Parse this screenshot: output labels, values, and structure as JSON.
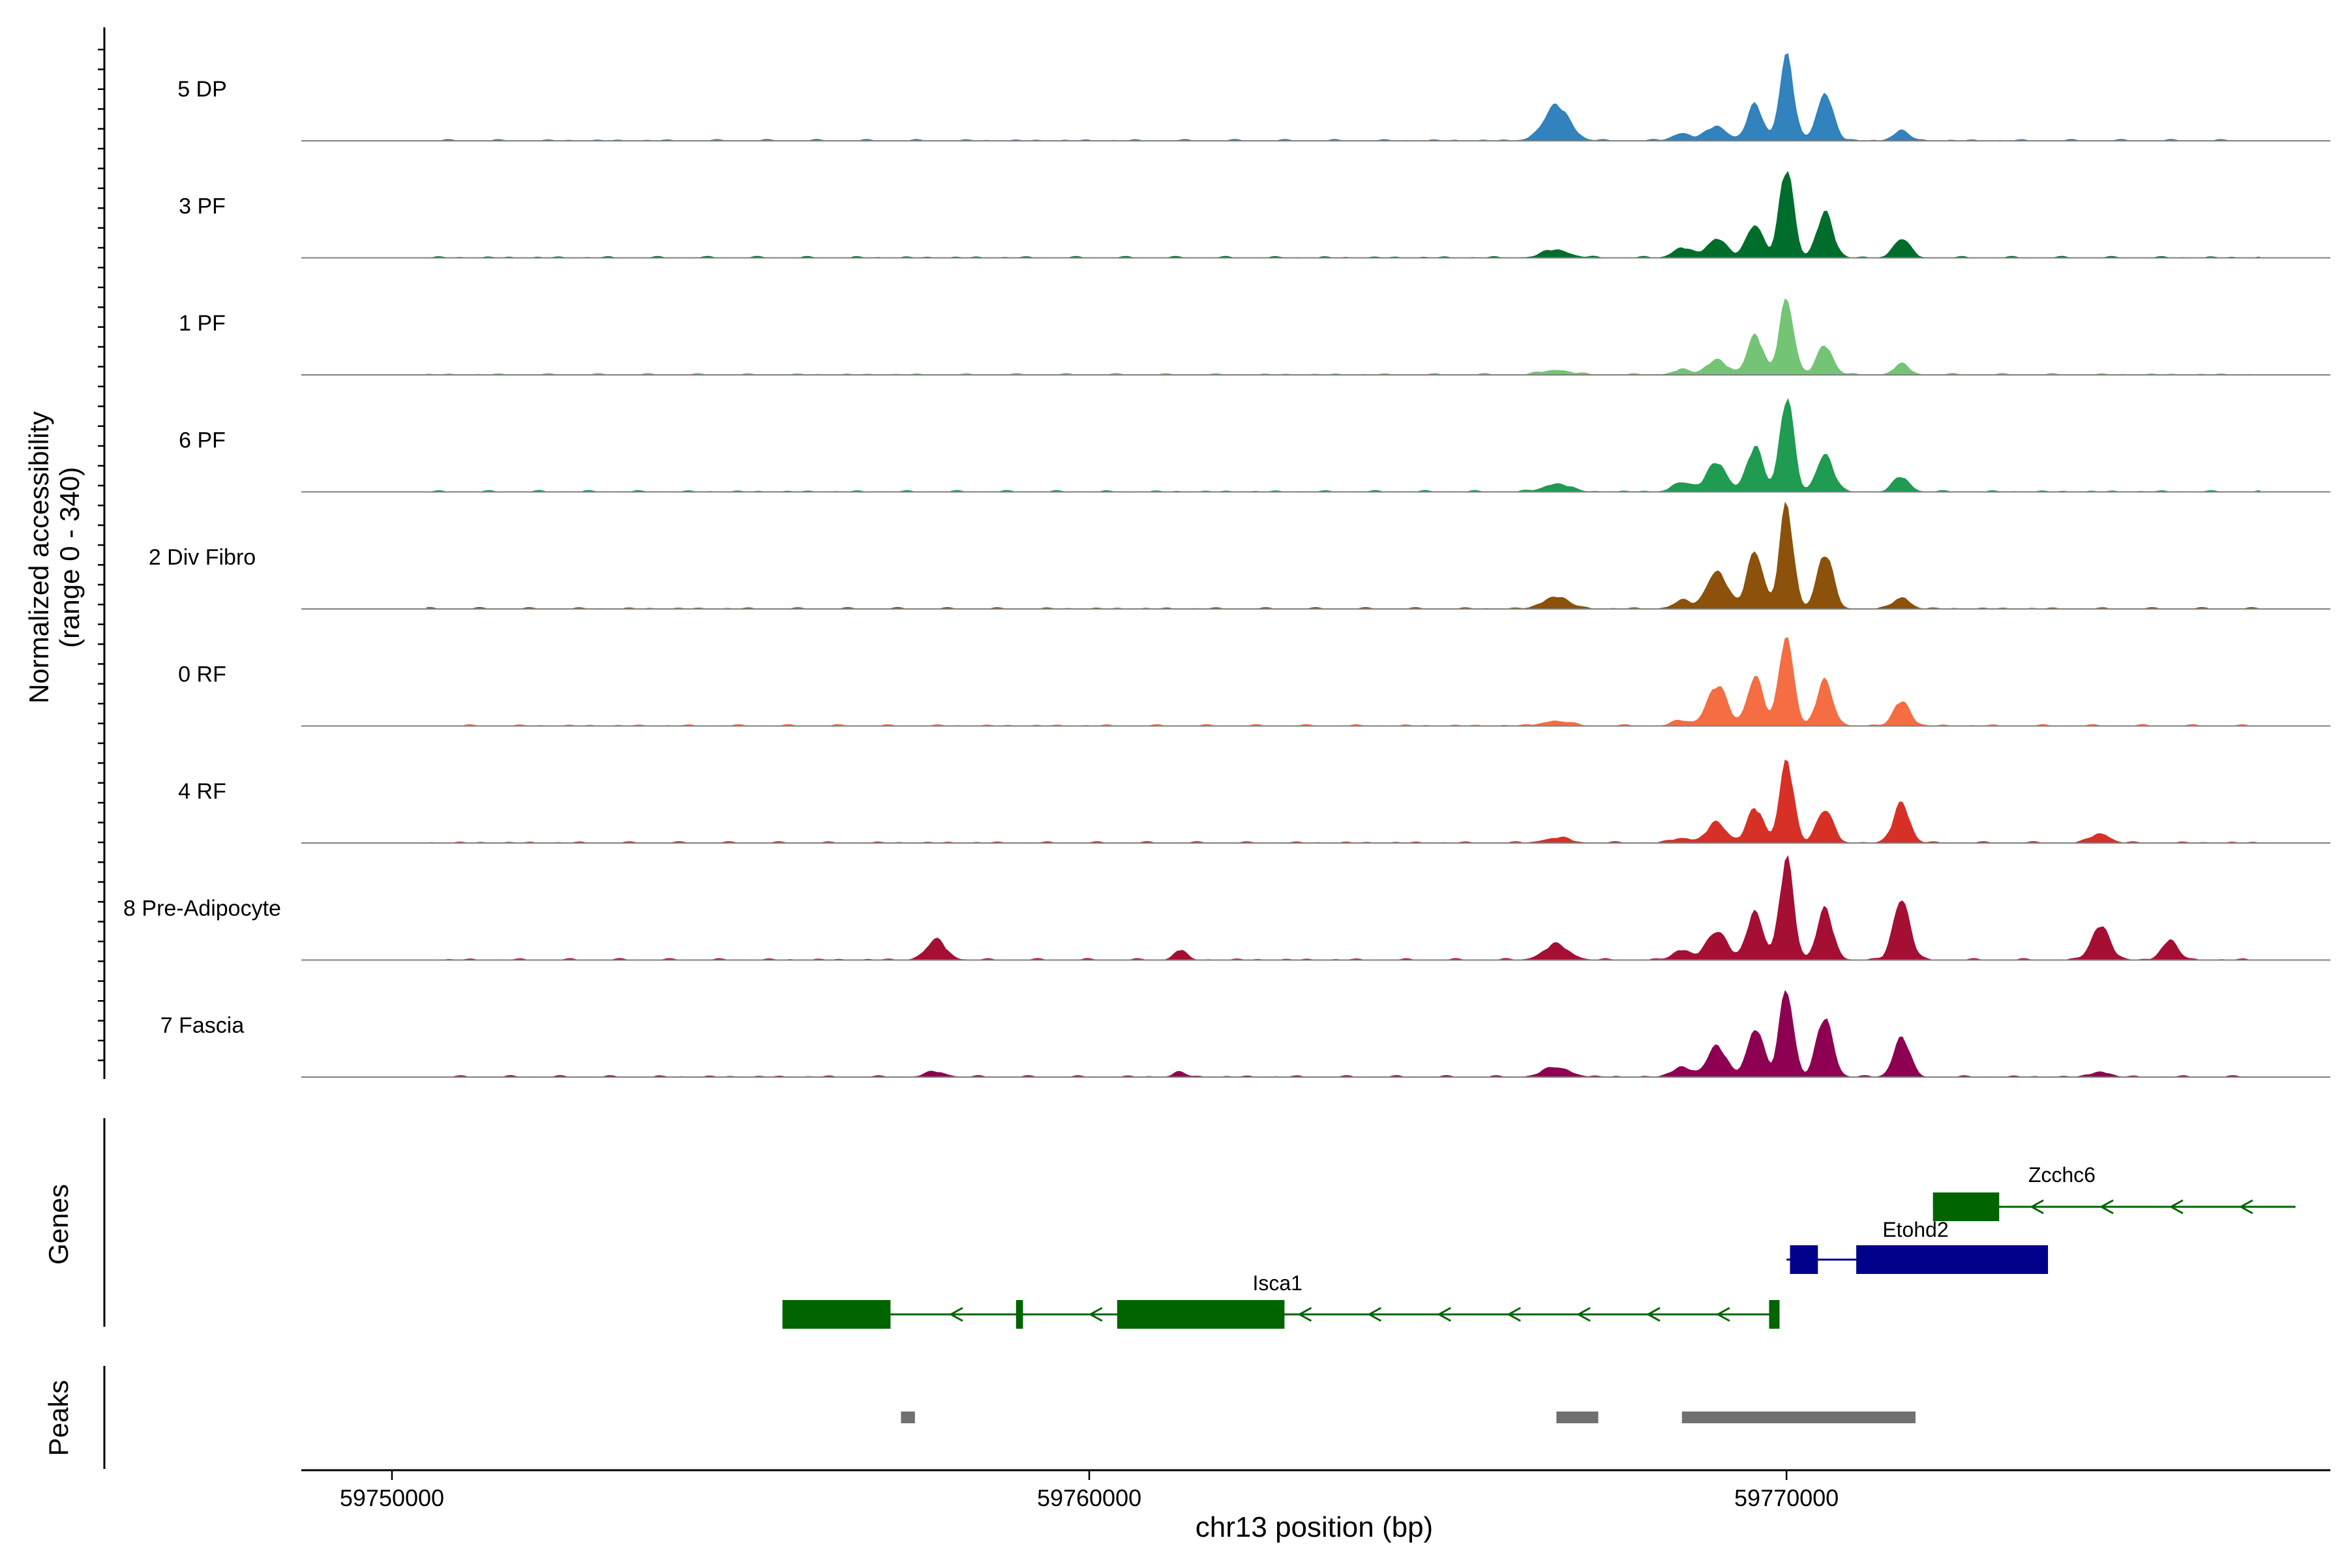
{
  "chart_data": {
    "type": "area",
    "genomic_range": [
      59748700,
      59777800
    ],
    "coverage": {
      "ylabel_line1": "Normalized accessibility",
      "ylabel_line2": "(range 0 - 340)",
      "ylim": [
        0,
        340
      ],
      "tracks": [
        {
          "label": "5 DP",
          "color": "#3182bd"
        },
        {
          "label": "3 PF",
          "color": "#006d2c"
        },
        {
          "label": "1 PF",
          "color": "#74c476"
        },
        {
          "label": "6 PF",
          "color": "#1f9b52"
        },
        {
          "label": "2 Div Fibro",
          "color": "#8c510a"
        },
        {
          "label": "0 RF",
          "color": "#f46d43"
        },
        {
          "label": "4 RF",
          "color": "#d73027"
        },
        {
          "label": "8 Pre-Adipocyte",
          "color": "#a50f33"
        },
        {
          "label": "7 Fascia",
          "color": "#8e0152"
        }
      ],
      "peak_positions_bp": [
        59766700,
        59768500,
        59769000,
        59769550,
        59770000,
        59770550,
        59771650,
        59774500,
        59775500,
        59757800,
        59761300
      ],
      "peak_heights_by_track": [
        [
          0.35,
          0.08,
          0.15,
          0.35,
          0.85,
          0.5,
          0.1,
          0.0,
          0.0,
          0.0,
          0.0
        ],
        [
          0.08,
          0.1,
          0.2,
          0.35,
          0.9,
          0.45,
          0.2,
          0.0,
          0.0,
          0.0,
          0.0
        ],
        [
          0.05,
          0.05,
          0.15,
          0.4,
          0.8,
          0.3,
          0.1,
          0.0,
          0.0,
          0.0,
          0.0
        ],
        [
          0.08,
          0.1,
          0.3,
          0.45,
          0.95,
          0.4,
          0.15,
          0.0,
          0.0,
          0.0,
          0.0
        ],
        [
          0.12,
          0.08,
          0.4,
          0.6,
          1.0,
          0.55,
          0.12,
          0.0,
          0.0,
          0.0,
          0.0
        ],
        [
          0.05,
          0.05,
          0.4,
          0.5,
          0.95,
          0.45,
          0.25,
          0.0,
          0.0,
          0.0,
          0.0
        ],
        [
          0.05,
          0.05,
          0.2,
          0.35,
          0.85,
          0.35,
          0.4,
          0.1,
          0.0,
          0.0,
          0.0
        ],
        [
          0.15,
          0.1,
          0.3,
          0.5,
          1.0,
          0.5,
          0.65,
          0.35,
          0.2,
          0.2,
          0.1
        ],
        [
          0.1,
          0.1,
          0.3,
          0.5,
          0.9,
          0.6,
          0.4,
          0.05,
          0.0,
          0.05,
          0.05
        ]
      ]
    },
    "genes": {
      "label": "Genes",
      "items": [
        {
          "name": "Zcchc6",
          "strand": "-",
          "color": "#006400",
          "start": 59772100,
          "end": 59777300,
          "exons": [
            [
              59772100,
              59773050
            ]
          ]
        },
        {
          "name": "Etohd2",
          "strand": "+",
          "color": "#00008b",
          "start": 59770000,
          "end": 59773750,
          "exons": [
            [
              59770050,
              59770450
            ],
            [
              59771000,
              59773750
            ]
          ]
        },
        {
          "name": "Isca1",
          "strand": "-",
          "color": "#006400",
          "start": 59755600,
          "end": 59769900,
          "exons": [
            [
              59755600,
              59757150
            ],
            [
              59758950,
              59759050
            ],
            [
              59760400,
              59762800
            ],
            [
              59769750,
              59769900
            ]
          ]
        }
      ]
    },
    "peaks": {
      "label": "Peaks",
      "color": "#707070",
      "regions": [
        [
          59757300,
          59757500
        ],
        [
          59766700,
          59767300
        ],
        [
          59768500,
          59771850
        ]
      ]
    },
    "x_axis": {
      "label": "chr13 position (bp)",
      "ticks": [
        59750000,
        59760000,
        59770000
      ],
      "tick_labels": [
        "59750000",
        "59760000",
        "59770000"
      ]
    }
  }
}
